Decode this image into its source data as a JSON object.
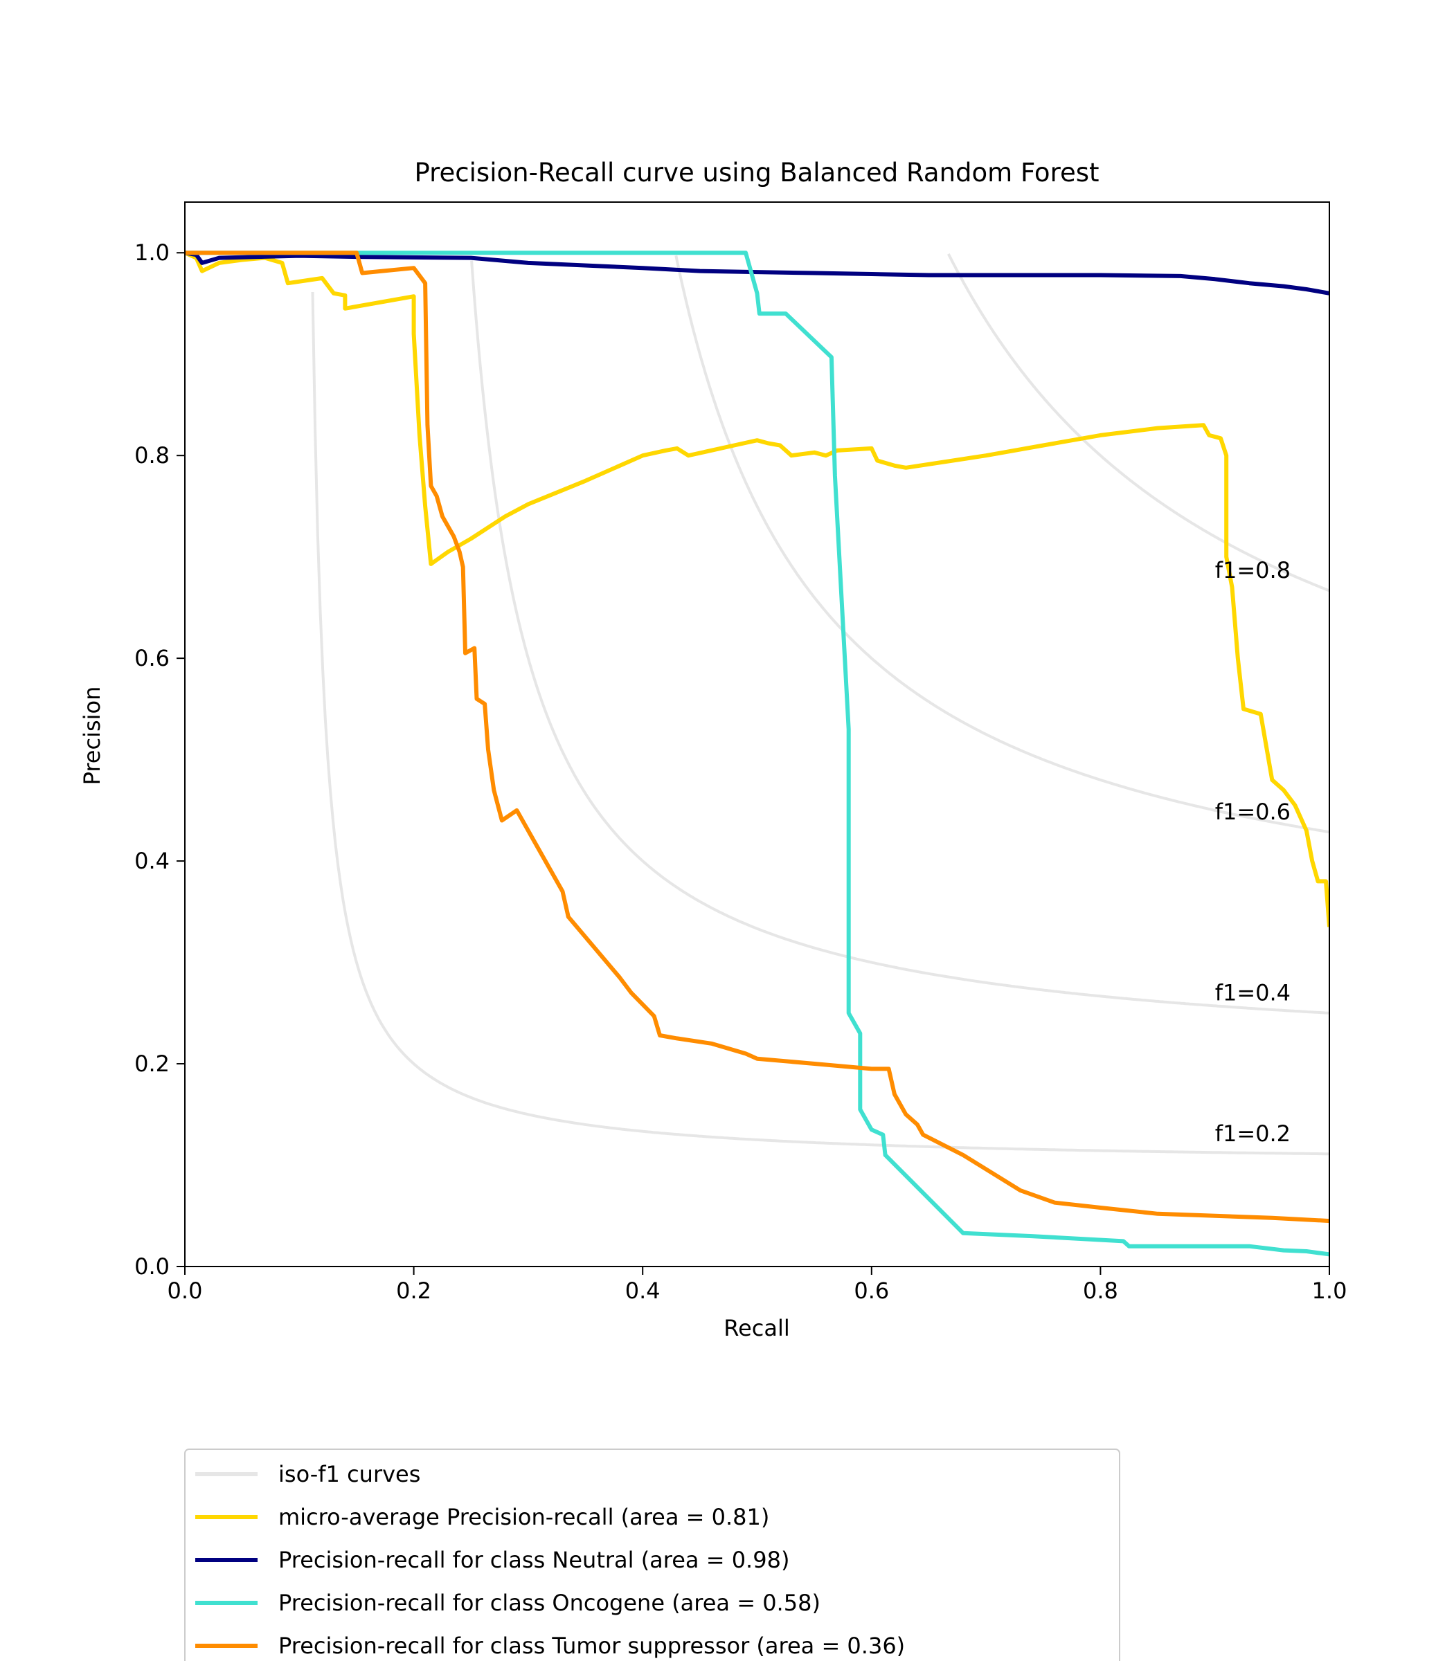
{
  "chart_data": {
    "type": "line",
    "title": "Precision-Recall curve using Balanced Random Forest",
    "xlabel": "Recall",
    "ylabel": "Precision",
    "xlim": [
      0.0,
      1.0
    ],
    "ylim": [
      0.0,
      1.05
    ],
    "xticks": [
      "0.0",
      "0.2",
      "0.4",
      "0.6",
      "0.8",
      "1.0"
    ],
    "yticks": [
      "0.0",
      "0.2",
      "0.4",
      "0.6",
      "0.8",
      "1.0"
    ],
    "grid": false,
    "legend_position": "below-plot",
    "iso_f1": {
      "color": "#e6e6e6",
      "levels": [
        0.2,
        0.4,
        0.6,
        0.8
      ],
      "labels": [
        "f1=0.2",
        "f1=0.4",
        "f1=0.6",
        "f1=0.8"
      ]
    },
    "series": [
      {
        "name": "micro-average Precision-recall (area = 0.81)",
        "color": "#ffd700",
        "points": [
          [
            0.0,
            1.0
          ],
          [
            0.01,
            0.995
          ],
          [
            0.015,
            0.982
          ],
          [
            0.03,
            0.99
          ],
          [
            0.05,
            0.993
          ],
          [
            0.07,
            0.995
          ],
          [
            0.085,
            0.99
          ],
          [
            0.09,
            0.97
          ],
          [
            0.12,
            0.975
          ],
          [
            0.13,
            0.96
          ],
          [
            0.14,
            0.958
          ],
          [
            0.14,
            0.945
          ],
          [
            0.2,
            0.957
          ],
          [
            0.2,
            0.92
          ],
          [
            0.205,
            0.82
          ],
          [
            0.21,
            0.75
          ],
          [
            0.215,
            0.693
          ],
          [
            0.23,
            0.705
          ],
          [
            0.25,
            0.718
          ],
          [
            0.28,
            0.74
          ],
          [
            0.3,
            0.752
          ],
          [
            0.35,
            0.775
          ],
          [
            0.4,
            0.8
          ],
          [
            0.42,
            0.805
          ],
          [
            0.43,
            0.807
          ],
          [
            0.44,
            0.8
          ],
          [
            0.48,
            0.81
          ],
          [
            0.5,
            0.815
          ],
          [
            0.51,
            0.812
          ],
          [
            0.52,
            0.81
          ],
          [
            0.53,
            0.8
          ],
          [
            0.55,
            0.803
          ],
          [
            0.56,
            0.8
          ],
          [
            0.57,
            0.805
          ],
          [
            0.6,
            0.807
          ],
          [
            0.605,
            0.795
          ],
          [
            0.62,
            0.79
          ],
          [
            0.63,
            0.788
          ],
          [
            0.7,
            0.8
          ],
          [
            0.75,
            0.81
          ],
          [
            0.8,
            0.82
          ],
          [
            0.85,
            0.827
          ],
          [
            0.89,
            0.83
          ],
          [
            0.895,
            0.82
          ],
          [
            0.905,
            0.817
          ],
          [
            0.91,
            0.8
          ],
          [
            0.91,
            0.7
          ],
          [
            0.915,
            0.67
          ],
          [
            0.92,
            0.6
          ],
          [
            0.925,
            0.55
          ],
          [
            0.94,
            0.545
          ],
          [
            0.95,
            0.48
          ],
          [
            0.96,
            0.47
          ],
          [
            0.97,
            0.455
          ],
          [
            0.98,
            0.43
          ],
          [
            0.985,
            0.4
          ],
          [
            0.99,
            0.38
          ],
          [
            0.997,
            0.38
          ],
          [
            1.0,
            0.335
          ]
        ]
      },
      {
        "name": "Precision-recall for class Neutral (area = 0.98)",
        "color": "#000080",
        "points": [
          [
            0.0,
            1.0
          ],
          [
            0.01,
            0.998
          ],
          [
            0.015,
            0.99
          ],
          [
            0.03,
            0.995
          ],
          [
            0.1,
            0.997
          ],
          [
            0.15,
            0.996
          ],
          [
            0.25,
            0.995
          ],
          [
            0.3,
            0.99
          ],
          [
            0.4,
            0.985
          ],
          [
            0.45,
            0.982
          ],
          [
            0.5,
            0.981
          ],
          [
            0.55,
            0.98
          ],
          [
            0.6,
            0.979
          ],
          [
            0.65,
            0.978
          ],
          [
            0.7,
            0.978
          ],
          [
            0.8,
            0.978
          ],
          [
            0.87,
            0.977
          ],
          [
            0.9,
            0.974
          ],
          [
            0.93,
            0.97
          ],
          [
            0.96,
            0.967
          ],
          [
            0.98,
            0.964
          ],
          [
            1.0,
            0.96
          ]
        ]
      },
      {
        "name": "Precision-recall for class Oncogene (area = 0.58)",
        "color": "#40e0d0",
        "points": [
          [
            0.0,
            1.0
          ],
          [
            0.49,
            1.0
          ],
          [
            0.5,
            0.96
          ],
          [
            0.502,
            0.94
          ],
          [
            0.525,
            0.94
          ],
          [
            0.565,
            0.897
          ],
          [
            0.568,
            0.78
          ],
          [
            0.58,
            0.53
          ],
          [
            0.58,
            0.25
          ],
          [
            0.59,
            0.23
          ],
          [
            0.59,
            0.155
          ],
          [
            0.6,
            0.135
          ],
          [
            0.61,
            0.13
          ],
          [
            0.612,
            0.11
          ],
          [
            0.68,
            0.033
          ],
          [
            0.74,
            0.03
          ],
          [
            0.82,
            0.025
          ],
          [
            0.825,
            0.02
          ],
          [
            0.85,
            0.02
          ],
          [
            0.93,
            0.02
          ],
          [
            0.96,
            0.016
          ],
          [
            0.98,
            0.015
          ],
          [
            1.0,
            0.012
          ]
        ]
      },
      {
        "name": "Precision-recall for class Tumor suppressor (area = 0.36)",
        "color": "#ff8c00",
        "points": [
          [
            0.0,
            1.0
          ],
          [
            0.15,
            1.0
          ],
          [
            0.155,
            0.98
          ],
          [
            0.2,
            0.985
          ],
          [
            0.21,
            0.97
          ],
          [
            0.212,
            0.83
          ],
          [
            0.215,
            0.77
          ],
          [
            0.22,
            0.76
          ],
          [
            0.225,
            0.74
          ],
          [
            0.235,
            0.72
          ],
          [
            0.24,
            0.705
          ],
          [
            0.243,
            0.69
          ],
          [
            0.245,
            0.605
          ],
          [
            0.253,
            0.61
          ],
          [
            0.255,
            0.56
          ],
          [
            0.262,
            0.555
          ],
          [
            0.265,
            0.51
          ],
          [
            0.27,
            0.47
          ],
          [
            0.277,
            0.44
          ],
          [
            0.29,
            0.45
          ],
          [
            0.3,
            0.43
          ],
          [
            0.33,
            0.37
          ],
          [
            0.335,
            0.345
          ],
          [
            0.38,
            0.285
          ],
          [
            0.39,
            0.27
          ],
          [
            0.41,
            0.247
          ],
          [
            0.415,
            0.228
          ],
          [
            0.43,
            0.225
          ],
          [
            0.46,
            0.22
          ],
          [
            0.49,
            0.21
          ],
          [
            0.5,
            0.205
          ],
          [
            0.55,
            0.2
          ],
          [
            0.6,
            0.195
          ],
          [
            0.615,
            0.195
          ],
          [
            0.62,
            0.17
          ],
          [
            0.63,
            0.15
          ],
          [
            0.64,
            0.14
          ],
          [
            0.645,
            0.13
          ],
          [
            0.68,
            0.11
          ],
          [
            0.73,
            0.075
          ],
          [
            0.76,
            0.063
          ],
          [
            0.8,
            0.058
          ],
          [
            0.85,
            0.052
          ],
          [
            0.9,
            0.05
          ],
          [
            0.95,
            0.048
          ],
          [
            1.0,
            0.045
          ]
        ]
      }
    ],
    "legend": [
      {
        "label": "iso-f1 curves",
        "color": "#e6e6e6"
      },
      {
        "label": "micro-average Precision-recall (area = 0.81)",
        "color": "#ffd700"
      },
      {
        "label": "Precision-recall for class Neutral (area = 0.98)",
        "color": "#000080"
      },
      {
        "label": "Precision-recall for class Oncogene (area = 0.58)",
        "color": "#40e0d0"
      },
      {
        "label": "Precision-recall for class Tumor suppressor (area = 0.36)",
        "color": "#ff8c00"
      }
    ]
  }
}
